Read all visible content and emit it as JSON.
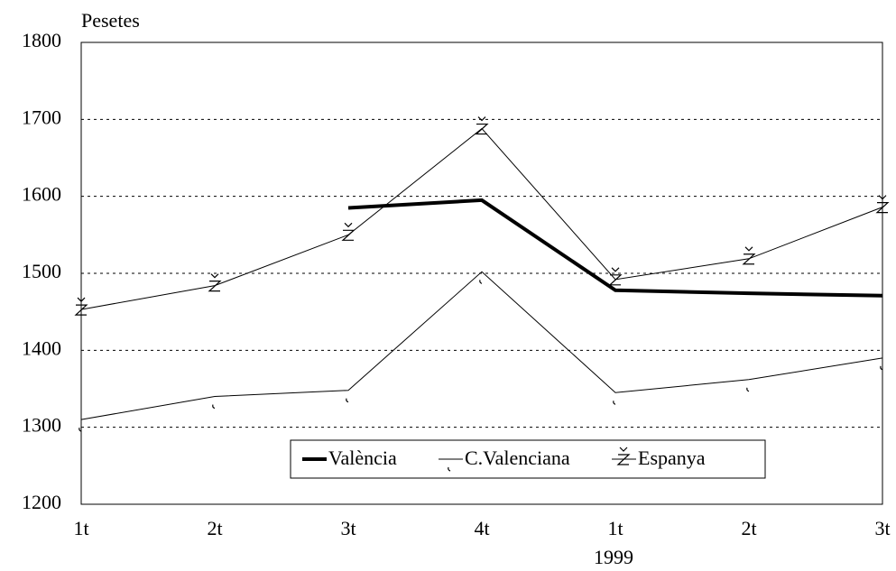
{
  "chart_data": {
    "type": "line",
    "y_label": "Pesetes",
    "annotation": "1999",
    "categories": [
      "1t",
      "2t",
      "3t",
      "4t",
      "1t",
      "2t",
      "3t"
    ],
    "series": [
      {
        "name": "València",
        "color": "#000000",
        "line_width": 4,
        "marker": "none",
        "values": [
          null,
          null,
          1585,
          1595,
          1478,
          1474,
          1471
        ]
      },
      {
        "name": "C.Valenciana",
        "color": "#000000",
        "line_width": 1,
        "marker": "hook",
        "values": [
          1310,
          1340,
          1348,
          1502,
          1345,
          1362,
          1390
        ]
      },
      {
        "name": "Espanya",
        "color": "#000000",
        "line_width": 1,
        "marker": "z",
        "values": [
          1453,
          1484,
          1550,
          1688,
          1492,
          1519,
          1586
        ]
      }
    ],
    "ylim": [
      1200,
      1800
    ],
    "yticks": [
      1200,
      1300,
      1400,
      1500,
      1600,
      1700,
      1800
    ],
    "grid": true
  }
}
